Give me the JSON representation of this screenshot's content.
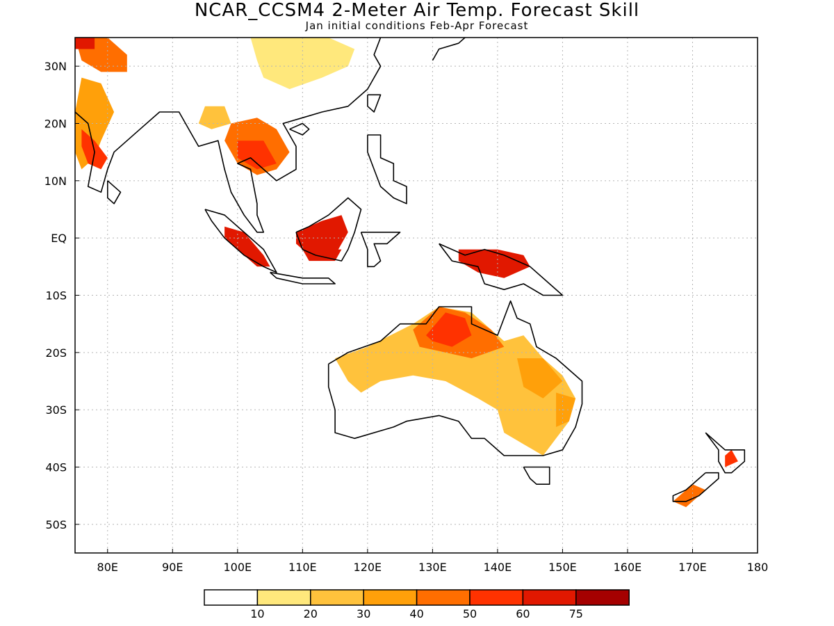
{
  "title": "NCAR_CCSM4 2-Meter Air Temp. Forecast Skill",
  "subtitle": "Jan initial conditions  Feb-Apr Forecast",
  "map": {
    "lon_range": [
      75,
      180
    ],
    "lat_range": [
      -55,
      35
    ],
    "lon_ticks": [
      {
        "value": 80,
        "label": "80E"
      },
      {
        "value": 90,
        "label": "90E"
      },
      {
        "value": 100,
        "label": "100E"
      },
      {
        "value": 110,
        "label": "110E"
      },
      {
        "value": 120,
        "label": "120E"
      },
      {
        "value": 130,
        "label": "130E"
      },
      {
        "value": 140,
        "label": "140E"
      },
      {
        "value": 150,
        "label": "150E"
      },
      {
        "value": 160,
        "label": "160E"
      },
      {
        "value": 170,
        "label": "170E"
      },
      {
        "value": 180,
        "label": "180"
      }
    ],
    "lat_ticks": [
      {
        "value": 30,
        "label": "30N"
      },
      {
        "value": 20,
        "label": "20N"
      },
      {
        "value": 10,
        "label": "10N"
      },
      {
        "value": 0,
        "label": "EQ"
      },
      {
        "value": -10,
        "label": "10S"
      },
      {
        "value": -20,
        "label": "20S"
      },
      {
        "value": -30,
        "label": "30S"
      },
      {
        "value": -40,
        "label": "40S"
      },
      {
        "value": -50,
        "label": "50S"
      }
    ],
    "grid": true
  },
  "legend": {
    "colors": [
      "#ffffff",
      "#ffe87c",
      "#ffc23c",
      "#ffa00a",
      "#ff6e00",
      "#ff3200",
      "#e11800",
      "#a50000"
    ],
    "labels": [
      "10",
      "20",
      "30",
      "40",
      "50",
      "60",
      "75"
    ]
  },
  "skill_regions": [
    {
      "region": "India west",
      "points": [
        [
          76,
          28
        ],
        [
          79,
          27
        ],
        [
          81,
          22
        ],
        [
          79,
          17
        ],
        [
          78,
          14
        ],
        [
          76,
          12
        ],
        [
          75,
          15
        ],
        [
          75,
          22
        ]
      ],
      "level": 3
    },
    {
      "region": "India central",
      "points": [
        [
          76,
          19
        ],
        [
          78,
          17
        ],
        [
          80,
          14
        ],
        [
          79,
          12
        ],
        [
          77,
          13
        ],
        [
          76,
          16
        ]
      ],
      "level": 5
    },
    {
      "region": "India north",
      "points": [
        [
          75,
          35
        ],
        [
          80,
          35
        ],
        [
          83,
          32
        ],
        [
          83,
          29
        ],
        [
          79,
          29
        ],
        [
          76,
          31
        ]
      ],
      "level": 4
    },
    {
      "region": "Pakistan north",
      "points": [
        [
          75,
          35
        ],
        [
          78,
          35
        ],
        [
          78,
          33
        ],
        [
          75,
          33
        ]
      ],
      "level": 6
    },
    {
      "region": "China",
      "points": [
        [
          102,
          35
        ],
        [
          114,
          35
        ],
        [
          118,
          33
        ],
        [
          117,
          30
        ],
        [
          113,
          28
        ],
        [
          108,
          26
        ],
        [
          104,
          28
        ],
        [
          103,
          31
        ]
      ],
      "level": 1
    },
    {
      "region": "Indochina",
      "points": [
        [
          99,
          20
        ],
        [
          103,
          21
        ],
        [
          106,
          19
        ],
        [
          108,
          15
        ],
        [
          106,
          12
        ],
        [
          103,
          11
        ],
        [
          100,
          13
        ],
        [
          98,
          17
        ]
      ],
      "level": 4
    },
    {
      "region": "Thailand core",
      "points": [
        [
          100,
          17
        ],
        [
          104,
          17
        ],
        [
          106,
          13
        ],
        [
          103,
          12
        ],
        [
          100,
          14
        ]
      ],
      "level": 5
    },
    {
      "region": "Myanmar",
      "points": [
        [
          95,
          23
        ],
        [
          98,
          23
        ],
        [
          99,
          20
        ],
        [
          96,
          19
        ],
        [
          94,
          20
        ]
      ],
      "level": 2
    },
    {
      "region": "Sumatra",
      "points": [
        [
          98,
          2
        ],
        [
          101,
          1
        ],
        [
          104,
          -3
        ],
        [
          105,
          -5
        ],
        [
          103,
          -5
        ],
        [
          100,
          -2
        ],
        [
          98,
          0
        ]
      ],
      "level": 6
    },
    {
      "region": "Borneo",
      "points": [
        [
          109,
          1
        ],
        [
          113,
          3
        ],
        [
          116,
          4
        ],
        [
          117,
          1
        ],
        [
          115,
          -3
        ],
        [
          111,
          -3
        ],
        [
          109,
          -1
        ]
      ],
      "level": 6
    },
    {
      "region": "Borneo south",
      "points": [
        [
          110,
          -2
        ],
        [
          116,
          -2
        ],
        [
          115,
          -4
        ],
        [
          111,
          -4
        ]
      ],
      "level": 6
    },
    {
      "region": "New Guinea",
      "points": [
        [
          134,
          -2
        ],
        [
          140,
          -2
        ],
        [
          144,
          -3
        ],
        [
          145,
          -5
        ],
        [
          141,
          -7
        ],
        [
          137,
          -6
        ],
        [
          134,
          -4
        ]
      ],
      "level": 6
    },
    {
      "region": "Australia base",
      "points": [
        [
          115,
          -21
        ],
        [
          120,
          -19
        ],
        [
          127,
          -15
        ],
        [
          131,
          -12
        ],
        [
          136,
          -13
        ],
        [
          141,
          -18
        ],
        [
          144,
          -17
        ],
        [
          147,
          -21
        ],
        [
          150,
          -24
        ],
        [
          152,
          -28
        ],
        [
          151,
          -32
        ],
        [
          149,
          -35
        ],
        [
          147,
          -38
        ],
        [
          144,
          -36
        ],
        [
          141,
          -34
        ],
        [
          140,
          -30
        ],
        [
          137,
          -28
        ],
        [
          132,
          -25
        ],
        [
          127,
          -24
        ],
        [
          122,
          -25
        ],
        [
          119,
          -27
        ],
        [
          117,
          -25
        ],
        [
          116,
          -23
        ]
      ],
      "level": 2
    },
    {
      "region": "Australia north",
      "points": [
        [
          127,
          -16
        ],
        [
          131,
          -12
        ],
        [
          135,
          -13
        ],
        [
          139,
          -16
        ],
        [
          141,
          -19
        ],
        [
          136,
          -21
        ],
        [
          132,
          -20
        ],
        [
          128,
          -19
        ]
      ],
      "level": 4
    },
    {
      "region": "Top End core",
      "points": [
        [
          129,
          -17
        ],
        [
          132,
          -13
        ],
        [
          135,
          -14
        ],
        [
          136,
          -17
        ],
        [
          133,
          -19
        ],
        [
          130,
          -18
        ]
      ],
      "level": 5
    },
    {
      "region": "Queensland",
      "points": [
        [
          143,
          -21
        ],
        [
          147,
          -21
        ],
        [
          150,
          -25
        ],
        [
          147,
          -28
        ],
        [
          144,
          -26
        ]
      ],
      "level": 3
    },
    {
      "region": "NSW east",
      "points": [
        [
          149,
          -27
        ],
        [
          152,
          -28
        ],
        [
          151,
          -32
        ],
        [
          149,
          -33
        ]
      ],
      "level": 3
    },
    {
      "region": "South Island NZ",
      "points": [
        [
          167,
          -46
        ],
        [
          170,
          -43
        ],
        [
          172,
          -44
        ],
        [
          169,
          -47
        ]
      ],
      "level": 4
    },
    {
      "region": "North Island NZ",
      "points": [
        [
          175,
          -38
        ],
        [
          176,
          -37
        ],
        [
          177,
          -39
        ],
        [
          175,
          -40
        ]
      ],
      "level": 5
    }
  ],
  "coast_lines": [
    {
      "name": "india",
      "points": [
        [
          75,
          22
        ],
        [
          77,
          20
        ],
        [
          78,
          15
        ],
        [
          77,
          9
        ],
        [
          79,
          8
        ],
        [
          80,
          12
        ],
        [
          81,
          15
        ],
        [
          85,
          19
        ],
        [
          88,
          22
        ],
        [
          91,
          22
        ],
        [
          93,
          18
        ],
        [
          94,
          16
        ],
        [
          97,
          17
        ],
        [
          98,
          12
        ],
        [
          99,
          8
        ],
        [
          101,
          4
        ],
        [
          103,
          1
        ],
        [
          104,
          1
        ],
        [
          103,
          4
        ],
        [
          103,
          6
        ],
        [
          102,
          12
        ],
        [
          100,
          13
        ],
        [
          102,
          14
        ],
        [
          106,
          10
        ],
        [
          109,
          12
        ],
        [
          109,
          16
        ],
        [
          107,
          20
        ],
        [
          110,
          21
        ],
        [
          113,
          22
        ],
        [
          117,
          23
        ],
        [
          120,
          26
        ],
        [
          122,
          30
        ],
        [
          121,
          32
        ],
        [
          122,
          35
        ]
      ]
    },
    {
      "name": "sri-lanka",
      "points": [
        [
          80,
          10
        ],
        [
          82,
          8
        ],
        [
          81,
          6
        ],
        [
          80,
          7
        ],
        [
          80,
          10
        ]
      ]
    },
    {
      "name": "sumatra",
      "points": [
        [
          95,
          5
        ],
        [
          98,
          4
        ],
        [
          101,
          1
        ],
        [
          104,
          -2
        ],
        [
          106,
          -6
        ],
        [
          104,
          -5
        ],
        [
          101,
          -3
        ],
        [
          98,
          0
        ],
        [
          96,
          3
        ],
        [
          95,
          5
        ]
      ]
    },
    {
      "name": "java",
      "points": [
        [
          105,
          -6
        ],
        [
          110,
          -7
        ],
        [
          114,
          -7
        ],
        [
          115,
          -8
        ],
        [
          110,
          -8
        ],
        [
          106,
          -7
        ],
        [
          105,
          -6
        ]
      ]
    },
    {
      "name": "borneo",
      "points": [
        [
          109,
          1
        ],
        [
          111,
          2
        ],
        [
          114,
          4
        ],
        [
          117,
          7
        ],
        [
          119,
          5
        ],
        [
          118,
          1
        ],
        [
          117,
          -2
        ],
        [
          116,
          -4
        ],
        [
          112,
          -3
        ],
        [
          110,
          -2
        ],
        [
          109,
          1
        ]
      ]
    },
    {
      "name": "sulawesi",
      "points": [
        [
          119,
          1
        ],
        [
          121,
          1
        ],
        [
          125,
          1
        ],
        [
          123,
          -1
        ],
        [
          121,
          -1
        ],
        [
          122,
          -4
        ],
        [
          121,
          -5
        ],
        [
          120,
          -5
        ],
        [
          120,
          -2
        ],
        [
          119,
          1
        ]
      ]
    },
    {
      "name": "philippines",
      "points": [
        [
          120,
          18
        ],
        [
          122,
          18
        ],
        [
          122,
          14
        ],
        [
          124,
          13
        ],
        [
          124,
          10
        ],
        [
          126,
          9
        ],
        [
          126,
          6
        ],
        [
          124,
          7
        ],
        [
          122,
          9
        ],
        [
          121,
          12
        ],
        [
          120,
          15
        ],
        [
          120,
          18
        ]
      ]
    },
    {
      "name": "new-guinea",
      "points": [
        [
          131,
          -1
        ],
        [
          135,
          -3
        ],
        [
          138,
          -2
        ],
        [
          141,
          -3
        ],
        [
          145,
          -5
        ],
        [
          148,
          -8
        ],
        [
          150,
          -10
        ],
        [
          147,
          -10
        ],
        [
          144,
          -8
        ],
        [
          141,
          -9
        ],
        [
          138,
          -8
        ],
        [
          137,
          -5
        ],
        [
          133,
          -4
        ],
        [
          131,
          -1
        ]
      ]
    },
    {
      "name": "australia",
      "points": [
        [
          114,
          -22
        ],
        [
          117,
          -20
        ],
        [
          122,
          -18
        ],
        [
          125,
          -15
        ],
        [
          129,
          -15
        ],
        [
          131,
          -12
        ],
        [
          136,
          -12
        ],
        [
          136,
          -15
        ],
        [
          140,
          -17
        ],
        [
          142,
          -11
        ],
        [
          143,
          -14
        ],
        [
          145,
          -15
        ],
        [
          146,
          -19
        ],
        [
          149,
          -21
        ],
        [
          153,
          -25
        ],
        [
          153,
          -29
        ],
        [
          152,
          -33
        ],
        [
          150,
          -37
        ],
        [
          147,
          -38
        ],
        [
          144,
          -38
        ],
        [
          141,
          -38
        ],
        [
          138,
          -35
        ],
        [
          136,
          -35
        ],
        [
          134,
          -32
        ],
        [
          131,
          -31
        ],
        [
          126,
          -32
        ],
        [
          124,
          -33
        ],
        [
          118,
          -35
        ],
        [
          115,
          -34
        ],
        [
          115,
          -30
        ],
        [
          114,
          -26
        ],
        [
          114,
          -22
        ]
      ]
    },
    {
      "name": "tasmania",
      "points": [
        [
          144,
          -40
        ],
        [
          148,
          -40
        ],
        [
          148,
          -43
        ],
        [
          146,
          -43
        ],
        [
          145,
          -42
        ],
        [
          144,
          -40
        ]
      ]
    },
    {
      "name": "nz-north",
      "points": [
        [
          172,
          -34
        ],
        [
          175,
          -37
        ],
        [
          178,
          -37
        ],
        [
          178,
          -39
        ],
        [
          176,
          -41
        ],
        [
          175,
          -41
        ],
        [
          174,
          -39
        ],
        [
          174,
          -37
        ],
        [
          172,
          -34
        ]
      ]
    },
    {
      "name": "nz-south",
      "points": [
        [
          172,
          -41
        ],
        [
          174,
          -41
        ],
        [
          174,
          -42
        ],
        [
          172,
          -44
        ],
        [
          171,
          -45
        ],
        [
          169,
          -46
        ],
        [
          167,
          -46
        ],
        [
          167,
          -45
        ],
        [
          169,
          -44
        ],
        [
          171,
          -42
        ],
        [
          172,
          -41
        ]
      ]
    },
    {
      "name": "japan",
      "points": [
        [
          130,
          31
        ],
        [
          131,
          33
        ],
        [
          134,
          34
        ],
        [
          135,
          35
        ]
      ]
    },
    {
      "name": "taiwan",
      "points": [
        [
          120,
          25
        ],
        [
          122,
          25
        ],
        [
          121,
          22
        ],
        [
          120,
          23
        ],
        [
          120,
          25
        ]
      ]
    },
    {
      "name": "hainan",
      "points": [
        [
          108,
          19
        ],
        [
          110,
          20
        ],
        [
          111,
          19
        ],
        [
          110,
          18
        ],
        [
          108,
          19
        ]
      ]
    }
  ]
}
